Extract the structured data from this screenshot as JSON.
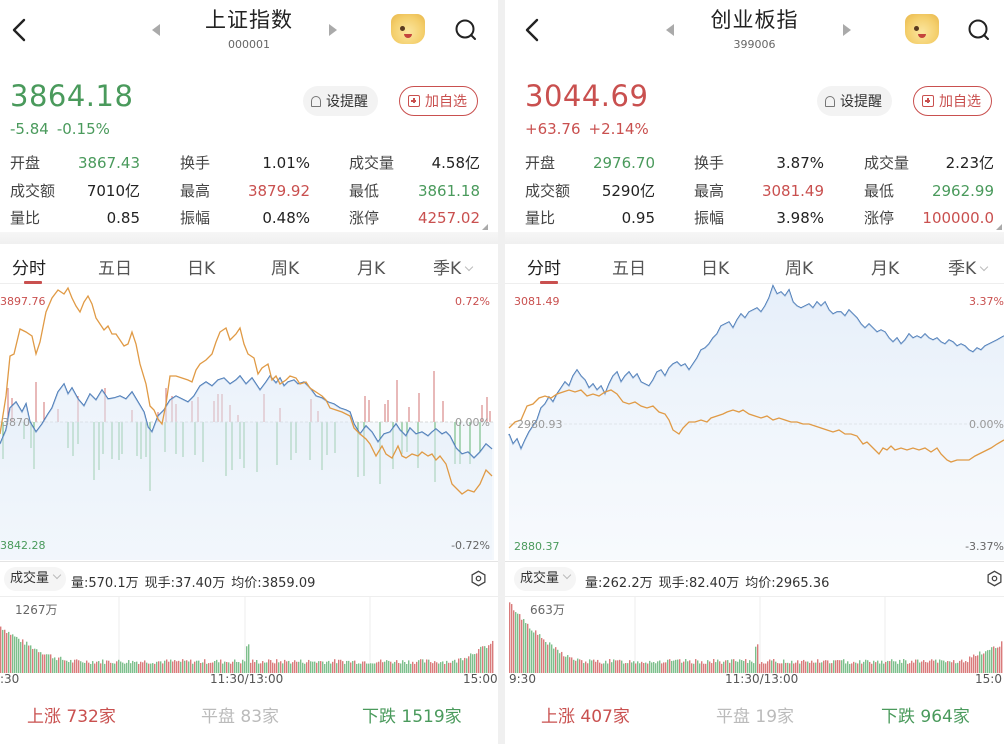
{
  "panels": [
    {
      "title": "上证指数",
      "code": "000001",
      "price": "3864.18",
      "change": "-5.84",
      "change_pct": "-0.15%",
      "direction": "down",
      "buttons": {
        "alert": "设提醒",
        "watchlist": "加自选"
      },
      "stats": [
        {
          "label": "开盘",
          "value": "3867.43",
          "color": "green"
        },
        {
          "label": "换手",
          "value": "1.01%",
          "color": "dark"
        },
        {
          "label": "成交量",
          "value": "4.58亿",
          "color": "dark"
        },
        {
          "label": "成交额",
          "value": "7010亿",
          "color": "dark"
        },
        {
          "label": "最高",
          "value": "3879.92",
          "color": "red"
        },
        {
          "label": "最低",
          "value": "3861.18",
          "color": "green"
        },
        {
          "label": "量比",
          "value": "0.85",
          "color": "dark"
        },
        {
          "label": "振幅",
          "value": "0.48%",
          "color": "dark"
        },
        {
          "label": "涨停",
          "value": "4257.02",
          "color": "red"
        }
      ],
      "tabs": [
        "分时",
        "五日",
        "日K",
        "周K",
        "月K",
        "季K"
      ],
      "active_tab": "分时",
      "chart": {
        "y_high": "3897.76",
        "y_mid": "3870",
        "y_low": "3842.28",
        "pct_high": "0.72%",
        "pct_mid": "0.00%",
        "pct_low": "-0.72%"
      },
      "volume": {
        "selector": "成交量",
        "vol": "量:570.1万",
        "current": "现手:37.40万",
        "avg_price": "均价:3859.09",
        "max_label": "1267万"
      },
      "time_axis": [
        ":30",
        "11:30/13:00",
        "15:00"
      ],
      "breadth": {
        "up": "上涨 732家",
        "flat": "平盘 83家",
        "down": "下跌 1519家"
      }
    },
    {
      "title": "创业板指",
      "code": "399006",
      "price": "3044.69",
      "change": "+63.76",
      "change_pct": "+2.14%",
      "direction": "up",
      "buttons": {
        "alert": "设提醒",
        "watchlist": "加自选"
      },
      "stats": [
        {
          "label": "开盘",
          "value": "2976.70",
          "color": "green"
        },
        {
          "label": "换手",
          "value": "3.87%",
          "color": "dark"
        },
        {
          "label": "成交量",
          "value": "2.23亿",
          "color": "dark"
        },
        {
          "label": "成交额",
          "value": "5290亿",
          "color": "dark"
        },
        {
          "label": "最高",
          "value": "3081.49",
          "color": "red"
        },
        {
          "label": "最低",
          "value": "2962.99",
          "color": "green"
        },
        {
          "label": "量比",
          "value": "0.95",
          "color": "dark"
        },
        {
          "label": "振幅",
          "value": "3.98%",
          "color": "dark"
        },
        {
          "label": "涨停",
          "value": "100000.0",
          "color": "red"
        }
      ],
      "tabs": [
        "分时",
        "五日",
        "日K",
        "周K",
        "月K",
        "季K"
      ],
      "active_tab": "分时",
      "chart": {
        "y_high": "3081.49",
        "y_mid": "2980.93",
        "y_low": "2880.37",
        "pct_high": "3.37%",
        "pct_mid": "0.00%",
        "pct_low": "-3.37%"
      },
      "volume": {
        "selector": "成交量",
        "vol": "量:262.2万",
        "current": "现手:82.40万",
        "avg_price": "均价:2965.36",
        "max_label": "663万"
      },
      "time_axis": [
        "9:30",
        "11:30/13:00",
        "15:0"
      ],
      "breadth": {
        "up": "上涨 407家",
        "flat": "平盘 19家",
        "down": "下跌 964家"
      }
    }
  ],
  "colors": {
    "red": "#c9504f",
    "green": "#4a9a5c",
    "dark": "#222222",
    "blue_line": "#3b6fb0",
    "orange_line": "#e09a45",
    "flat_gray": "#bbbbbb"
  }
}
